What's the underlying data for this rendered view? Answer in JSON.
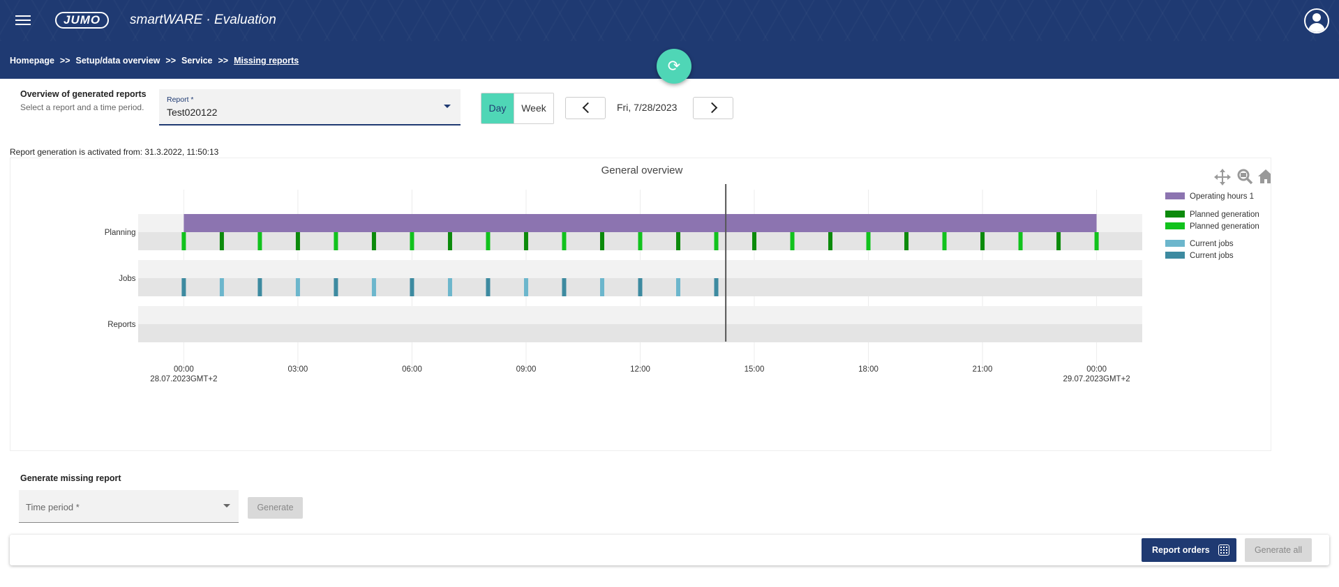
{
  "header": {
    "logo_text": "JUMO",
    "app_title": "smartWARE · Evaluation"
  },
  "breadcrumb": {
    "items": [
      "Homepage",
      "Setup/data overview",
      "Service"
    ],
    "separator": ">>",
    "current": "Missing reports"
  },
  "overview": {
    "title": "Overview of generated reports",
    "subtitle": "Select a report and a time period.",
    "report_label": "Report *",
    "report_value": "Test020122",
    "toggle_day": "Day",
    "toggle_week": "Week",
    "date": "Fri, 7/28/2023"
  },
  "activated_text": "Report generation is activated from: 31.3.2022, 11:50:13",
  "chart_data": {
    "type": "timeline",
    "title": "General overview",
    "rows": [
      "Planning",
      "Jobs",
      "Reports"
    ],
    "x_ticks": [
      "00:00",
      "03:00",
      "06:00",
      "09:00",
      "12:00",
      "15:00",
      "18:00",
      "21:00",
      "00:00"
    ],
    "x_tick_hours": [
      0,
      3,
      6,
      9,
      12,
      15,
      18,
      21,
      24
    ],
    "x_date_labels": [
      {
        "hour": 0,
        "text": "28.07.2023GMT+2"
      },
      {
        "hour": 24,
        "text": "29.07.2023GMT+2"
      }
    ],
    "x_range_hours": [
      -1.2,
      25.2
    ],
    "current_time_hour": 14.25,
    "operating_hours": {
      "name": "Operating hours 1",
      "start_hour": 0,
      "end_hour": 24,
      "color": "#8c74b0"
    },
    "planned_generation_hours": [
      0,
      1,
      2,
      3,
      4,
      5,
      6,
      7,
      8,
      9,
      10,
      11,
      12,
      13,
      14,
      15,
      16,
      17,
      18,
      19,
      20,
      21,
      22,
      23,
      24
    ],
    "current_jobs_hours": [
      0,
      1,
      2,
      3,
      4,
      5,
      6,
      7,
      8,
      9,
      10,
      11,
      12,
      13,
      14
    ],
    "colors": {
      "planned_dark": "#0b8a0b",
      "planned_light": "#11c21d",
      "jobs_light": "#6cb6cc",
      "jobs_dark": "#3d8aa0",
      "band_light": "#f2f2f2",
      "band_dark": "#e4e4e4",
      "now_line": "#555555"
    },
    "legend": [
      {
        "name": "Operating hours 1",
        "color": "#8c74b0"
      },
      {
        "name": "Planned generation",
        "color": "#0b8a0b"
      },
      {
        "name": "Planned generation",
        "color": "#11c21d"
      },
      {
        "name": "Current jobs",
        "color": "#6cb6cc"
      },
      {
        "name": "Current jobs",
        "color": "#3d8aa0"
      }
    ],
    "legend_position": "right",
    "toolbar_icons": [
      "pan-icon",
      "zoom-icon",
      "home-icon"
    ]
  },
  "generate": {
    "title": "Generate missing report",
    "period_placeholder": "Time period *",
    "generate_label": "Generate"
  },
  "bottom": {
    "orders_label": "Report orders",
    "generate_all_label": "Generate all"
  }
}
